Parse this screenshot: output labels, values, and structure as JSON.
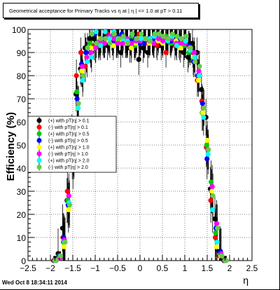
{
  "canvas": {
    "title": "Geometrical acceptance for Primary Tracks vs   η at | η | <= 1.0 at pT > 0.11",
    "timestamp": "Wed Oct  8 18:34:11 2014"
  },
  "chart_data": {
    "type": "scatter",
    "title": "",
    "xlabel": "η",
    "ylabel": "Efficiency (%)",
    "xlim": [
      -2.5,
      2.5
    ],
    "ylim": [
      0,
      100
    ],
    "x_ticks": [
      "−2.5",
      "−2",
      "−1.5",
      "−1",
      "−0.5",
      "0",
      "0.5",
      "1",
      "1.5",
      "2",
      "2.5"
    ],
    "y_ticks": [
      "0",
      "10",
      "20",
      "30",
      "40",
      "50",
      "60",
      "70",
      "80",
      "90",
      "100"
    ],
    "grid": true,
    "legend_position": "left",
    "x": [
      -1.9,
      -1.8,
      -1.7,
      -1.6,
      -1.5,
      -1.4,
      -1.3,
      -1.2,
      -1.1,
      -1.0,
      -0.9,
      -0.8,
      -0.7,
      -0.6,
      -0.5,
      -0.4,
      -0.3,
      -0.2,
      -0.1,
      0.0,
      0.1,
      0.2,
      0.3,
      0.4,
      0.5,
      0.6,
      0.7,
      0.8,
      0.9,
      1.0,
      1.1,
      1.2,
      1.3,
      1.4,
      1.5,
      1.6,
      1.7,
      1.8,
      1.9
    ],
    "series": [
      {
        "name": "(+) with pT|η| > 0.1",
        "color": "#000000",
        "values": [
          0,
          3,
          14,
          26,
          48,
          72,
          83,
          92,
          96,
          96,
          94,
          95,
          93,
          97,
          94,
          90,
          96,
          92,
          94,
          87,
          92,
          90,
          96,
          94,
          93,
          96,
          95,
          97,
          94,
          90,
          88,
          94,
          90,
          74,
          62,
          31,
          18,
          4,
          0
        ]
      },
      {
        "name": "(-) with pT|η| > 0.1",
        "color": "#ff0000",
        "values": [
          0,
          1,
          10,
          30,
          55,
          80,
          90,
          84,
          92,
          93,
          93,
          96,
          98,
          95,
          94,
          97,
          94,
          95,
          94,
          98,
          94,
          94,
          95,
          93,
          97,
          90,
          96,
          93,
          93,
          95,
          93,
          90,
          78,
          69,
          49,
          26,
          10,
          2,
          0
        ]
      },
      {
        "name": "(+) with pT|η| > 0.5",
        "color": "#00cc00",
        "values": [
          0,
          2,
          8,
          26,
          44,
          73,
          82,
          90,
          94,
          98,
          95,
          94,
          96,
          97,
          95,
          95,
          96,
          96,
          93,
          95,
          94,
          96,
          95,
          97,
          96,
          97,
          94,
          95,
          96,
          93,
          90,
          87,
          80,
          64,
          50,
          34,
          12,
          3,
          0
        ]
      },
      {
        "name": "(-) with pT|η| > 0.5",
        "color": "#0000ff",
        "values": [
          0,
          2,
          10,
          24,
          50,
          70,
          85,
          90,
          90,
          98,
          94,
          96,
          97,
          95,
          97,
          98,
          94,
          95,
          96,
          94,
          94,
          96,
          96,
          97,
          95,
          96,
          95,
          95,
          96,
          94,
          93,
          86,
          80,
          68,
          44,
          30,
          14,
          4,
          0
        ]
      },
      {
        "name": "(+) with pT|η| > 1.0",
        "color": "#ffff00",
        "values": [
          0,
          1,
          6,
          22,
          40,
          66,
          82,
          88,
          92,
          92,
          96,
          94,
          95,
          93,
          96,
          95,
          94,
          92,
          94,
          96,
          96,
          94,
          94,
          95,
          94,
          96,
          97,
          95,
          92,
          94,
          92,
          88,
          78,
          64,
          52,
          30,
          6,
          2,
          0
        ]
      },
      {
        "name": "(-) with pT|η| > 1.0",
        "color": "#ff00ff",
        "values": [
          0,
          1,
          9,
          28,
          46,
          68,
          84,
          88,
          90,
          92,
          95,
          94,
          97,
          96,
          94,
          94,
          96,
          94,
          95,
          95,
          96,
          95,
          94,
          96,
          95,
          96,
          96,
          94,
          94,
          94,
          92,
          90,
          82,
          66,
          48,
          32,
          16,
          3,
          0
        ]
      },
      {
        "name": "(+) with pT|η| > 2.0",
        "color": "#00ffff",
        "values": [
          0,
          2,
          8,
          25,
          45,
          66,
          78,
          86,
          88,
          99,
          93,
          99,
          96,
          99,
          96,
          96,
          95,
          98,
          96,
          96,
          96,
          96,
          97,
          98,
          97,
          95,
          97,
          93,
          96,
          95,
          91,
          88,
          80,
          62,
          46,
          22,
          8,
          2,
          0
        ]
      },
      {
        "name": "(-) with pT|η| > 2.0",
        "color": "#66cc44",
        "values": [
          0,
          2,
          8,
          24,
          44,
          68,
          80,
          92,
          98,
          94,
          96,
          96,
          94,
          98,
          96,
          97,
          94,
          98,
          96,
          98,
          96,
          95,
          98,
          98,
          97,
          96,
          98,
          97,
          96,
          97,
          92,
          86,
          84,
          66,
          48,
          28,
          14,
          2,
          0
        ]
      }
    ]
  }
}
